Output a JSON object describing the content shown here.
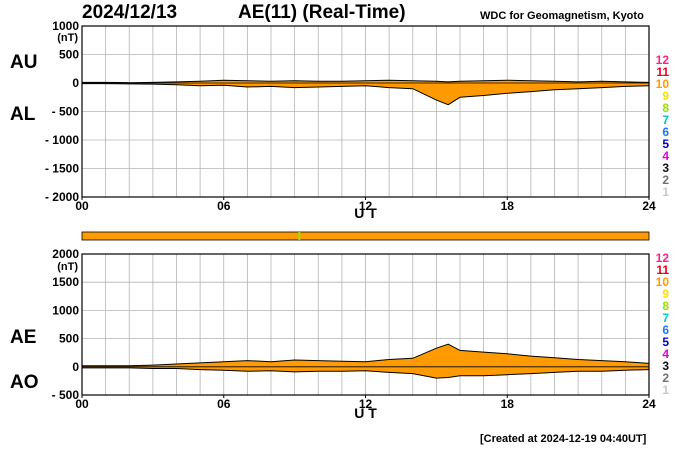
{
  "header": {
    "date": "2024/12/13",
    "title": "AE(11) (Real-Time)",
    "credit": "WDC for Geomagnetism, Kyoto"
  },
  "footer": {
    "created": "[Created at 2024-12-19 04:40UT]"
  },
  "colors": {
    "fill": "#ff9a00",
    "outline": "#000000",
    "grid": "#b4b4b4",
    "bar": "#ff9a00",
    "bar_mark": "#9be000"
  },
  "stations": {
    "labels": [
      "12",
      "11",
      "10",
      "9",
      "8",
      "7",
      "6",
      "5",
      "4",
      "3",
      "2",
      "1"
    ],
    "colors": [
      "#ff1f8f",
      "#e8001c",
      "#ff9a00",
      "#ffe000",
      "#98e000",
      "#00c8c8",
      "#1e78ff",
      "#0000c8",
      "#e000e0",
      "#101010",
      "#707070",
      "#c8c8c8"
    ]
  },
  "status_bar": {
    "mark_hour": 9.2
  },
  "chart_data": [
    {
      "type": "area",
      "series_labels": [
        "AU",
        "AL"
      ],
      "ylabel": "(nT)",
      "xlabel": "U T",
      "xlim": [
        0,
        24
      ],
      "ylim": [
        -2000,
        1000
      ],
      "yticks": [
        1000,
        500,
        0,
        -500,
        -1000,
        -1500,
        -2000
      ],
      "yticklabels": [
        "1000",
        "500",
        "0",
        "- 500",
        "- 1000",
        "- 1500",
        "- 2000"
      ],
      "xticks": [
        0,
        6,
        12,
        18,
        24
      ],
      "xticklabels": [
        "00",
        "06",
        "12",
        "18",
        "24"
      ],
      "hours": [
        0,
        1,
        2,
        3,
        4,
        5,
        6,
        7,
        8,
        9,
        10,
        11,
        12,
        13,
        14,
        15,
        15.5,
        16,
        17,
        18,
        19,
        20,
        21,
        22,
        23,
        24
      ],
      "upper": [
        10,
        10,
        5,
        10,
        20,
        30,
        50,
        40,
        30,
        40,
        30,
        30,
        40,
        50,
        40,
        30,
        20,
        30,
        40,
        50,
        40,
        30,
        20,
        30,
        20,
        10
      ],
      "lower": [
        -10,
        -10,
        -15,
        -20,
        -30,
        -50,
        -40,
        -70,
        -60,
        -80,
        -70,
        -60,
        -50,
        -80,
        -100,
        -300,
        -380,
        -250,
        -220,
        -180,
        -150,
        -120,
        -100,
        -80,
        -60,
        -50
      ]
    },
    {
      "type": "area",
      "series_labels": [
        "AE",
        "AO"
      ],
      "ylabel": "(nT)",
      "xlabel": "U T",
      "xlim": [
        0,
        24
      ],
      "ylim": [
        -500,
        2000
      ],
      "yticks": [
        2000,
        1500,
        1000,
        500,
        0,
        -500
      ],
      "yticklabels": [
        "2000",
        "1500",
        "1000",
        "500",
        "0",
        "- 500"
      ],
      "xticks": [
        0,
        6,
        12,
        18,
        24
      ],
      "xticklabels": [
        "00",
        "06",
        "12",
        "18",
        "24"
      ],
      "hours": [
        0,
        1,
        2,
        3,
        4,
        5,
        6,
        7,
        8,
        9,
        10,
        11,
        12,
        13,
        14,
        15,
        15.5,
        16,
        17,
        18,
        19,
        20,
        21,
        22,
        23,
        24
      ],
      "upper": [
        20,
        20,
        20,
        30,
        50,
        70,
        90,
        110,
        90,
        120,
        110,
        100,
        90,
        130,
        150,
        330,
        400,
        290,
        260,
        230,
        190,
        160,
        130,
        110,
        90,
        60
      ],
      "lower": [
        -20,
        -20,
        -20,
        -30,
        -30,
        -50,
        -60,
        -80,
        -70,
        -90,
        -80,
        -80,
        -70,
        -100,
        -120,
        -200,
        -190,
        -160,
        -160,
        -140,
        -120,
        -100,
        -80,
        -80,
        -60,
        -50
      ]
    }
  ]
}
